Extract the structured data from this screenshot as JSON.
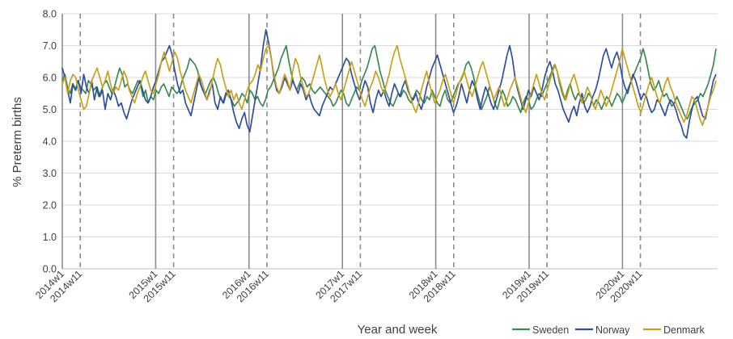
{
  "chart_data": {
    "type": "line",
    "ylabel": "% Preterm births",
    "xlabel": "Year and week",
    "ylim": [
      0,
      8
    ],
    "yticks": [
      "0.0",
      "1.0",
      "2.0",
      "3.0",
      "4.0",
      "5.0",
      "6.0",
      "7.0",
      "8.0"
    ],
    "grid": true,
    "legend_position": "bottom-right",
    "x_tick_labels": [
      "2014w1",
      "2014w11",
      "2015w1",
      "2015w11",
      "2016w1",
      "2016w11",
      "2017w1",
      "2017w11",
      "2018w1",
      "2018w11",
      "2019w1",
      "2019w11",
      "2020w1",
      "2020w11"
    ],
    "year_starts": [
      "2014w1",
      "2015w1",
      "2016w1",
      "2017w1",
      "2018w1",
      "2019w1",
      "2020w1"
    ],
    "week11_markers": [
      "2014w11",
      "2015w11",
      "2016w11",
      "2017w11",
      "2018w11",
      "2019w11",
      "2020w11"
    ],
    "series": [
      {
        "name": "Sweden",
        "color": "#3a8a52",
        "values": [
          5.9,
          6.1,
          5.7,
          5.5,
          5.8,
          5.6,
          5.9,
          5.7,
          5.6,
          5.5,
          5.9,
          5.8,
          5.6,
          5.7,
          5.4,
          5.6,
          5.8,
          5.9,
          5.7,
          5.5,
          5.7,
          6.0,
          6.3,
          6.1,
          5.7,
          5.8,
          5.6,
          5.5,
          5.7,
          5.9,
          5.8,
          5.4,
          5.6,
          5.2,
          5.4,
          5.3,
          5.6,
          5.5,
          5.7,
          5.8,
          5.6,
          5.4,
          5.7,
          5.6,
          5.5,
          5.6,
          5.9,
          6.1,
          6.3,
          6.6,
          6.5,
          6.4,
          6.2,
          5.8,
          5.6,
          5.5,
          5.7,
          5.9,
          6.0,
          5.8,
          5.5,
          5.3,
          5.2,
          5.5,
          5.4,
          5.3,
          5.1,
          5.2,
          5.3,
          5.5,
          5.4,
          5.2,
          5.6,
          5.5,
          5.3,
          5.4,
          5.2,
          5.1,
          5.3,
          5.6,
          5.7,
          5.9,
          6.1,
          6.3,
          6.6,
          6.8,
          7.0,
          6.5,
          6.1,
          5.8,
          5.6,
          5.8,
          6.0,
          5.9,
          5.7,
          5.8,
          5.6,
          5.5,
          5.6,
          5.7,
          5.6,
          5.5,
          5.4,
          5.3,
          5.1,
          5.2,
          5.4,
          5.6,
          5.5,
          5.2,
          5.1,
          5.3,
          5.5,
          5.7,
          5.6,
          5.9,
          6.1,
          6.3,
          6.6,
          6.9,
          7.0,
          6.6,
          6.2,
          5.9,
          5.6,
          5.4,
          5.2,
          5.1,
          5.3,
          5.5,
          5.4,
          5.6,
          5.5,
          5.3,
          5.2,
          5.4,
          5.6,
          5.5,
          5.3,
          5.2,
          5.4,
          5.3,
          5.6,
          5.4,
          5.2,
          5.1,
          5.4,
          5.6,
          5.3,
          5.2,
          5.4,
          5.6,
          5.8,
          5.9,
          6.1,
          6.4,
          6.5,
          6.3,
          6.0,
          5.6,
          5.3,
          5.0,
          5.2,
          5.4,
          5.7,
          5.5,
          5.2,
          5.0,
          5.3,
          5.6,
          5.4,
          5.1,
          5.2,
          5.4,
          5.3,
          5.1,
          4.9,
          5.2,
          5.4,
          5.3,
          5.0,
          5.1,
          5.3,
          5.5,
          5.4,
          5.6,
          5.8,
          6.0,
          6.2,
          6.4,
          6.2,
          5.8,
          5.5,
          5.3,
          5.6,
          5.8,
          5.5,
          5.3,
          5.5,
          5.4,
          5.2,
          5.3,
          5.5,
          5.4,
          5.1,
          5.3,
          5.2,
          5.0,
          5.2,
          5.4,
          5.3,
          5.1,
          5.3,
          5.5,
          5.4,
          5.2,
          5.4,
          5.6,
          5.8,
          6.0,
          6.2,
          6.4,
          6.6,
          6.9,
          6.6,
          6.2,
          5.8,
          5.6,
          5.7,
          5.9,
          5.6,
          5.4,
          5.5,
          5.3,
          5.1,
          5.2,
          5.4,
          5.2,
          5.0,
          4.8,
          4.7,
          4.9,
          5.1,
          5.2,
          5.3,
          5.5,
          5.4,
          5.6,
          5.8,
          6.1,
          6.4,
          6.9
        ]
      },
      {
        "name": "Norway",
        "color": "#2e4f9e",
        "values": [
          6.3,
          6.0,
          5.6,
          5.2,
          5.8,
          5.6,
          5.9,
          5.5,
          6.1,
          5.7,
          5.5,
          5.9,
          5.3,
          5.7,
          5.4,
          5.6,
          5.0,
          5.5,
          5.3,
          5.6,
          5.4,
          5.1,
          5.2,
          4.9,
          4.7,
          5.0,
          5.3,
          5.5,
          5.7,
          5.9,
          5.6,
          5.3,
          5.2,
          5.4,
          5.7,
          5.9,
          6.2,
          6.5,
          6.6,
          6.8,
          7.0,
          6.7,
          6.2,
          5.8,
          5.5,
          5.6,
          5.2,
          5.0,
          4.8,
          5.2,
          5.6,
          6.0,
          5.7,
          5.5,
          5.3,
          5.6,
          5.8,
          5.2,
          5.0,
          5.4,
          5.2,
          5.5,
          5.6,
          5.3,
          4.9,
          4.6,
          4.4,
          4.7,
          4.9,
          4.5,
          4.3,
          4.8,
          5.3,
          5.8,
          6.3,
          7.0,
          7.5,
          7.1,
          6.6,
          6.0,
          5.6,
          5.5,
          5.7,
          6.0,
          5.8,
          5.6,
          5.9,
          5.7,
          5.5,
          5.8,
          5.6,
          5.3,
          5.5,
          5.2,
          5.0,
          4.9,
          4.8,
          5.1,
          5.3,
          5.5,
          5.7,
          5.6,
          5.8,
          6.0,
          6.2,
          6.4,
          6.6,
          6.5,
          6.1,
          5.8,
          5.5,
          5.3,
          5.6,
          5.9,
          5.7,
          5.2,
          4.9,
          5.3,
          5.6,
          5.4,
          5.6,
          5.3,
          5.1,
          5.5,
          5.8,
          5.6,
          5.4,
          5.7,
          5.9,
          5.6,
          5.4,
          5.3,
          5.5,
          5.2,
          5.0,
          5.3,
          5.7,
          6.0,
          6.3,
          6.5,
          6.7,
          6.4,
          6.1,
          5.8,
          5.5,
          5.2,
          4.9,
          5.1,
          5.4,
          5.8,
          5.5,
          5.2,
          5.6,
          5.9,
          5.7,
          5.3,
          5.0,
          5.4,
          5.7,
          5.5,
          5.2,
          5.0,
          5.3,
          5.6,
          5.9,
          6.3,
          6.7,
          7.0,
          6.6,
          6.0,
          5.6,
          5.3,
          5.0,
          5.3,
          5.6,
          5.4,
          5.7,
          5.5,
          5.3,
          5.6,
          6.0,
          6.3,
          6.5,
          6.2,
          5.8,
          5.6,
          5.3,
          5.0,
          4.8,
          4.6,
          4.9,
          5.1,
          4.8,
          5.2,
          5.5,
          5.1,
          4.9,
          5.1,
          5.4,
          5.6,
          5.9,
          6.3,
          6.7,
          6.9,
          6.6,
          6.3,
          6.6,
          6.8,
          6.5,
          6.0,
          5.7,
          5.5,
          5.8,
          6.1,
          5.9,
          5.6,
          5.3,
          5.5,
          5.4,
          5.1,
          4.9,
          5.0,
          5.3,
          5.2,
          5.0,
          4.8,
          5.1,
          5.3,
          5.2,
          5.0,
          4.7,
          4.5,
          4.2,
          4.1,
          4.6,
          5.0,
          5.3,
          5.4,
          5.1,
          4.8,
          4.7,
          5.1,
          5.5,
          5.9,
          6.1
        ]
      },
      {
        "name": "Denmark",
        "color": "#c9a01c",
        "values": [
          5.8,
          6.0,
          5.5,
          5.9,
          6.1,
          6.0,
          5.6,
          5.3,
          5.0,
          5.1,
          5.5,
          5.9,
          6.1,
          6.3,
          6.0,
          5.7,
          5.9,
          6.2,
          5.8,
          5.5,
          5.7,
          5.6,
          5.9,
          6.2,
          6.0,
          5.6,
          5.4,
          5.2,
          5.5,
          5.7,
          6.0,
          6.2,
          5.9,
          5.6,
          5.5,
          5.8,
          6.1,
          6.5,
          6.8,
          6.5,
          6.2,
          6.5,
          6.8,
          6.6,
          6.2,
          5.9,
          5.6,
          5.4,
          5.2,
          5.5,
          5.8,
          6.1,
          5.9,
          5.6,
          5.3,
          5.5,
          5.9,
          6.3,
          6.6,
          6.4,
          6.0,
          5.7,
          5.4,
          5.6,
          5.3,
          5.5,
          5.2,
          5.0,
          5.3,
          5.6,
          5.8,
          5.9,
          6.1,
          6.4,
          6.2,
          6.6,
          6.9,
          7.0,
          6.6,
          6.1,
          5.7,
          5.5,
          5.8,
          6.1,
          5.9,
          5.6,
          6.2,
          6.6,
          6.4,
          6.0,
          5.7,
          5.4,
          5.5,
          5.8,
          6.1,
          6.4,
          6.7,
          6.3,
          5.9,
          5.6,
          5.4,
          5.6,
          5.8,
          5.5,
          5.3,
          5.6,
          5.9,
          6.2,
          6.5,
          6.2,
          5.9,
          5.6,
          5.3,
          5.1,
          5.4,
          5.7,
          5.9,
          6.2,
          6.0,
          5.7,
          5.5,
          5.8,
          6.1,
          6.5,
          6.8,
          7.0,
          6.6,
          6.3,
          6.0,
          5.7,
          5.4,
          5.1,
          4.9,
          5.2,
          5.6,
          5.9,
          6.2,
          5.8,
          5.5,
          5.2,
          5.4,
          5.6,
          5.9,
          6.1,
          5.8,
          5.5,
          5.2,
          5.5,
          5.8,
          6.0,
          6.2,
          5.9,
          5.6,
          5.4,
          5.7,
          6.0,
          6.3,
          6.5,
          6.2,
          5.9,
          5.6,
          5.3,
          5.5,
          5.7,
          5.4,
          5.1,
          5.3,
          5.6,
          5.8,
          6.0,
          5.7,
          5.4,
          5.1,
          4.9,
          5.2,
          5.5,
          5.8,
          6.1,
          5.8,
          5.5,
          5.3,
          5.6,
          5.9,
          6.2,
          6.4,
          6.1,
          5.8,
          5.5,
          5.3,
          5.6,
          5.9,
          6.1,
          5.8,
          5.5,
          5.2,
          5.4,
          5.7,
          5.5,
          5.2,
          5.0,
          5.3,
          5.6,
          5.4,
          5.1,
          5.3,
          5.6,
          5.9,
          6.2,
          6.5,
          6.9,
          6.6,
          6.3,
          6.0,
          5.7,
          5.4,
          5.1,
          4.9,
          5.2,
          5.5,
          5.8,
          6.0,
          5.7,
          5.4,
          5.2,
          5.5,
          5.8,
          6.0,
          5.7,
          5.5,
          5.2,
          5.0,
          4.8,
          4.6,
          4.8,
          5.1,
          5.4,
          5.3,
          5.0,
          4.7,
          4.5,
          4.8,
          5.1,
          5.4,
          5.6,
          5.9
        ]
      }
    ]
  }
}
